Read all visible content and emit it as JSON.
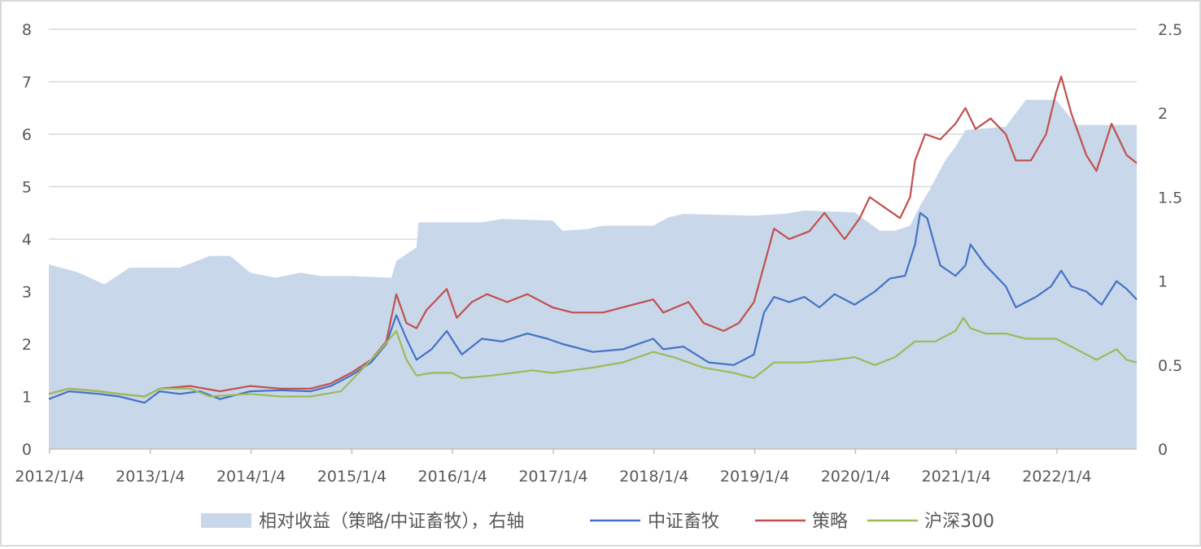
{
  "chart_data": {
    "type": "line",
    "x_ticks": [
      "2012/1/4",
      "2013/1/4",
      "2014/1/4",
      "2015/1/4",
      "2016/1/4",
      "2017/1/4",
      "2018/1/4",
      "2019/1/4",
      "2020/1/4",
      "2021/1/4",
      "2022/1/4"
    ],
    "x_range": [
      2012.0,
      2022.8
    ],
    "y_left": {
      "ticks": [
        "0",
        "1",
        "2",
        "3",
        "4",
        "5",
        "6",
        "7",
        "8"
      ],
      "range": [
        0,
        8
      ]
    },
    "y_right": {
      "ticks": [
        "0",
        "0.5",
        "1",
        "1.5",
        "2",
        "2.5"
      ],
      "range": [
        0,
        2.5
      ]
    },
    "grid": "horizontal",
    "legend_position": "bottom",
    "series": [
      {
        "name": "相对收益（策略/中证畜牧），右轴",
        "kind": "area",
        "axis": "right",
        "color": "#c9d7ea",
        "points": [
          [
            2012.0,
            1.1
          ],
          [
            2012.3,
            1.05
          ],
          [
            2012.55,
            0.98
          ],
          [
            2012.8,
            1.08
          ],
          [
            2013.0,
            1.08
          ],
          [
            2013.3,
            1.08
          ],
          [
            2013.6,
            1.15
          ],
          [
            2013.8,
            1.15
          ],
          [
            2014.0,
            1.05
          ],
          [
            2014.25,
            1.02
          ],
          [
            2014.5,
            1.05
          ],
          [
            2014.7,
            1.03
          ],
          [
            2015.0,
            1.03
          ],
          [
            2015.4,
            1.02
          ],
          [
            2015.45,
            1.12
          ],
          [
            2015.65,
            1.2
          ],
          [
            2015.67,
            1.35
          ],
          [
            2016.0,
            1.35
          ],
          [
            2016.3,
            1.35
          ],
          [
            2016.5,
            1.37
          ],
          [
            2017.0,
            1.36
          ],
          [
            2017.1,
            1.3
          ],
          [
            2017.35,
            1.31
          ],
          [
            2017.5,
            1.33
          ],
          [
            2018.0,
            1.33
          ],
          [
            2018.15,
            1.38
          ],
          [
            2018.3,
            1.4
          ],
          [
            2019.0,
            1.39
          ],
          [
            2019.3,
            1.4
          ],
          [
            2019.5,
            1.42
          ],
          [
            2020.0,
            1.41
          ],
          [
            2020.25,
            1.3
          ],
          [
            2020.4,
            1.3
          ],
          [
            2020.55,
            1.33
          ],
          [
            2020.65,
            1.45
          ],
          [
            2020.75,
            1.55
          ],
          [
            2020.9,
            1.72
          ],
          [
            2021.0,
            1.8
          ],
          [
            2021.1,
            1.9
          ],
          [
            2021.5,
            1.92
          ],
          [
            2021.6,
            2.0
          ],
          [
            2021.7,
            2.08
          ],
          [
            2022.0,
            2.08
          ],
          [
            2022.2,
            1.93
          ],
          [
            2022.8,
            1.93
          ]
        ]
      },
      {
        "name": "中证畜牧",
        "kind": "line",
        "axis": "left",
        "color": "#4472c4",
        "points": [
          [
            2012.0,
            0.95
          ],
          [
            2012.2,
            1.1
          ],
          [
            2012.5,
            1.05
          ],
          [
            2012.7,
            1.0
          ],
          [
            2012.95,
            0.88
          ],
          [
            2013.1,
            1.1
          ],
          [
            2013.3,
            1.05
          ],
          [
            2013.5,
            1.1
          ],
          [
            2013.7,
            0.95
          ],
          [
            2014.0,
            1.1
          ],
          [
            2014.3,
            1.12
          ],
          [
            2014.6,
            1.1
          ],
          [
            2014.8,
            1.2
          ],
          [
            2015.0,
            1.4
          ],
          [
            2015.2,
            1.65
          ],
          [
            2015.35,
            2.0
          ],
          [
            2015.45,
            2.55
          ],
          [
            2015.55,
            2.1
          ],
          [
            2015.65,
            1.7
          ],
          [
            2015.8,
            1.9
          ],
          [
            2015.95,
            2.25
          ],
          [
            2016.1,
            1.8
          ],
          [
            2016.3,
            2.1
          ],
          [
            2016.5,
            2.05
          ],
          [
            2016.75,
            2.2
          ],
          [
            2016.95,
            2.1
          ],
          [
            2017.1,
            2.0
          ],
          [
            2017.4,
            1.85
          ],
          [
            2017.7,
            1.9
          ],
          [
            2018.0,
            2.1
          ],
          [
            2018.1,
            1.9
          ],
          [
            2018.3,
            1.95
          ],
          [
            2018.55,
            1.65
          ],
          [
            2018.8,
            1.6
          ],
          [
            2019.0,
            1.8
          ],
          [
            2019.1,
            2.6
          ],
          [
            2019.2,
            2.9
          ],
          [
            2019.35,
            2.8
          ],
          [
            2019.5,
            2.9
          ],
          [
            2019.65,
            2.7
          ],
          [
            2019.8,
            2.95
          ],
          [
            2020.0,
            2.75
          ],
          [
            2020.2,
            3.0
          ],
          [
            2020.35,
            3.25
          ],
          [
            2020.5,
            3.3
          ],
          [
            2020.6,
            3.9
          ],
          [
            2020.65,
            4.5
          ],
          [
            2020.72,
            4.4
          ],
          [
            2020.85,
            3.5
          ],
          [
            2021.0,
            3.3
          ],
          [
            2021.1,
            3.5
          ],
          [
            2021.15,
            3.9
          ],
          [
            2021.3,
            3.5
          ],
          [
            2021.5,
            3.1
          ],
          [
            2021.6,
            2.7
          ],
          [
            2021.8,
            2.9
          ],
          [
            2021.95,
            3.1
          ],
          [
            2022.05,
            3.4
          ],
          [
            2022.15,
            3.1
          ],
          [
            2022.3,
            3.0
          ],
          [
            2022.45,
            2.75
          ],
          [
            2022.6,
            3.2
          ],
          [
            2022.7,
            3.05
          ],
          [
            2022.8,
            2.85
          ]
        ]
      },
      {
        "name": "策略",
        "kind": "line",
        "axis": "left",
        "color": "#c0504d",
        "points": [
          [
            2012.0,
            1.05
          ],
          [
            2012.2,
            1.15
          ],
          [
            2012.5,
            1.1
          ],
          [
            2012.7,
            1.05
          ],
          [
            2012.95,
            1.0
          ],
          [
            2013.1,
            1.15
          ],
          [
            2013.4,
            1.2
          ],
          [
            2013.7,
            1.1
          ],
          [
            2014.0,
            1.2
          ],
          [
            2014.3,
            1.15
          ],
          [
            2014.6,
            1.15
          ],
          [
            2014.8,
            1.25
          ],
          [
            2015.0,
            1.45
          ],
          [
            2015.2,
            1.7
          ],
          [
            2015.35,
            2.05
          ],
          [
            2015.45,
            2.95
          ],
          [
            2015.55,
            2.4
          ],
          [
            2015.65,
            2.3
          ],
          [
            2015.75,
            2.65
          ],
          [
            2015.95,
            3.05
          ],
          [
            2016.05,
            2.5
          ],
          [
            2016.2,
            2.8
          ],
          [
            2016.35,
            2.95
          ],
          [
            2016.55,
            2.8
          ],
          [
            2016.75,
            2.95
          ],
          [
            2017.0,
            2.7
          ],
          [
            2017.2,
            2.6
          ],
          [
            2017.5,
            2.6
          ],
          [
            2017.8,
            2.75
          ],
          [
            2018.0,
            2.85
          ],
          [
            2018.1,
            2.6
          ],
          [
            2018.35,
            2.8
          ],
          [
            2018.5,
            2.4
          ],
          [
            2018.7,
            2.25
          ],
          [
            2018.85,
            2.4
          ],
          [
            2019.0,
            2.8
          ],
          [
            2019.1,
            3.5
          ],
          [
            2019.2,
            4.2
          ],
          [
            2019.35,
            4.0
          ],
          [
            2019.55,
            4.15
          ],
          [
            2019.7,
            4.5
          ],
          [
            2019.9,
            4.0
          ],
          [
            2020.05,
            4.4
          ],
          [
            2020.15,
            4.8
          ],
          [
            2020.3,
            4.6
          ],
          [
            2020.45,
            4.4
          ],
          [
            2020.55,
            4.8
          ],
          [
            2020.6,
            5.5
          ],
          [
            2020.7,
            6.0
          ],
          [
            2020.85,
            5.9
          ],
          [
            2021.0,
            6.2
          ],
          [
            2021.1,
            6.5
          ],
          [
            2021.2,
            6.1
          ],
          [
            2021.35,
            6.3
          ],
          [
            2021.5,
            6.0
          ],
          [
            2021.6,
            5.5
          ],
          [
            2021.75,
            5.5
          ],
          [
            2021.9,
            6.0
          ],
          [
            2022.0,
            6.8
          ],
          [
            2022.05,
            7.1
          ],
          [
            2022.15,
            6.4
          ],
          [
            2022.3,
            5.6
          ],
          [
            2022.4,
            5.3
          ],
          [
            2022.55,
            6.2
          ],
          [
            2022.7,
            5.6
          ],
          [
            2022.8,
            5.45
          ]
        ]
      },
      {
        "name": "沪深300",
        "kind": "line",
        "axis": "left",
        "color": "#9bbb59",
        "points": [
          [
            2012.0,
            1.05
          ],
          [
            2012.2,
            1.15
          ],
          [
            2012.5,
            1.1
          ],
          [
            2012.7,
            1.05
          ],
          [
            2012.95,
            1.0
          ],
          [
            2013.1,
            1.15
          ],
          [
            2013.4,
            1.15
          ],
          [
            2013.6,
            1.0
          ],
          [
            2014.0,
            1.05
          ],
          [
            2014.3,
            1.0
          ],
          [
            2014.6,
            1.0
          ],
          [
            2014.9,
            1.1
          ],
          [
            2015.1,
            1.5
          ],
          [
            2015.25,
            1.8
          ],
          [
            2015.45,
            2.25
          ],
          [
            2015.55,
            1.7
          ],
          [
            2015.65,
            1.4
          ],
          [
            2015.8,
            1.45
          ],
          [
            2016.0,
            1.45
          ],
          [
            2016.1,
            1.35
          ],
          [
            2016.4,
            1.4
          ],
          [
            2016.8,
            1.5
          ],
          [
            2017.0,
            1.45
          ],
          [
            2017.4,
            1.55
          ],
          [
            2017.7,
            1.65
          ],
          [
            2018.0,
            1.85
          ],
          [
            2018.2,
            1.75
          ],
          [
            2018.5,
            1.55
          ],
          [
            2018.8,
            1.45
          ],
          [
            2019.0,
            1.35
          ],
          [
            2019.2,
            1.65
          ],
          [
            2019.5,
            1.65
          ],
          [
            2019.8,
            1.7
          ],
          [
            2020.0,
            1.75
          ],
          [
            2020.2,
            1.6
          ],
          [
            2020.4,
            1.75
          ],
          [
            2020.6,
            2.05
          ],
          [
            2020.8,
            2.05
          ],
          [
            2021.0,
            2.25
          ],
          [
            2021.08,
            2.5
          ],
          [
            2021.15,
            2.3
          ],
          [
            2021.3,
            2.2
          ],
          [
            2021.5,
            2.2
          ],
          [
            2021.7,
            2.1
          ],
          [
            2022.0,
            2.1
          ],
          [
            2022.2,
            1.9
          ],
          [
            2022.4,
            1.7
          ],
          [
            2022.6,
            1.9
          ],
          [
            2022.7,
            1.7
          ],
          [
            2022.8,
            1.65
          ]
        ]
      }
    ]
  }
}
